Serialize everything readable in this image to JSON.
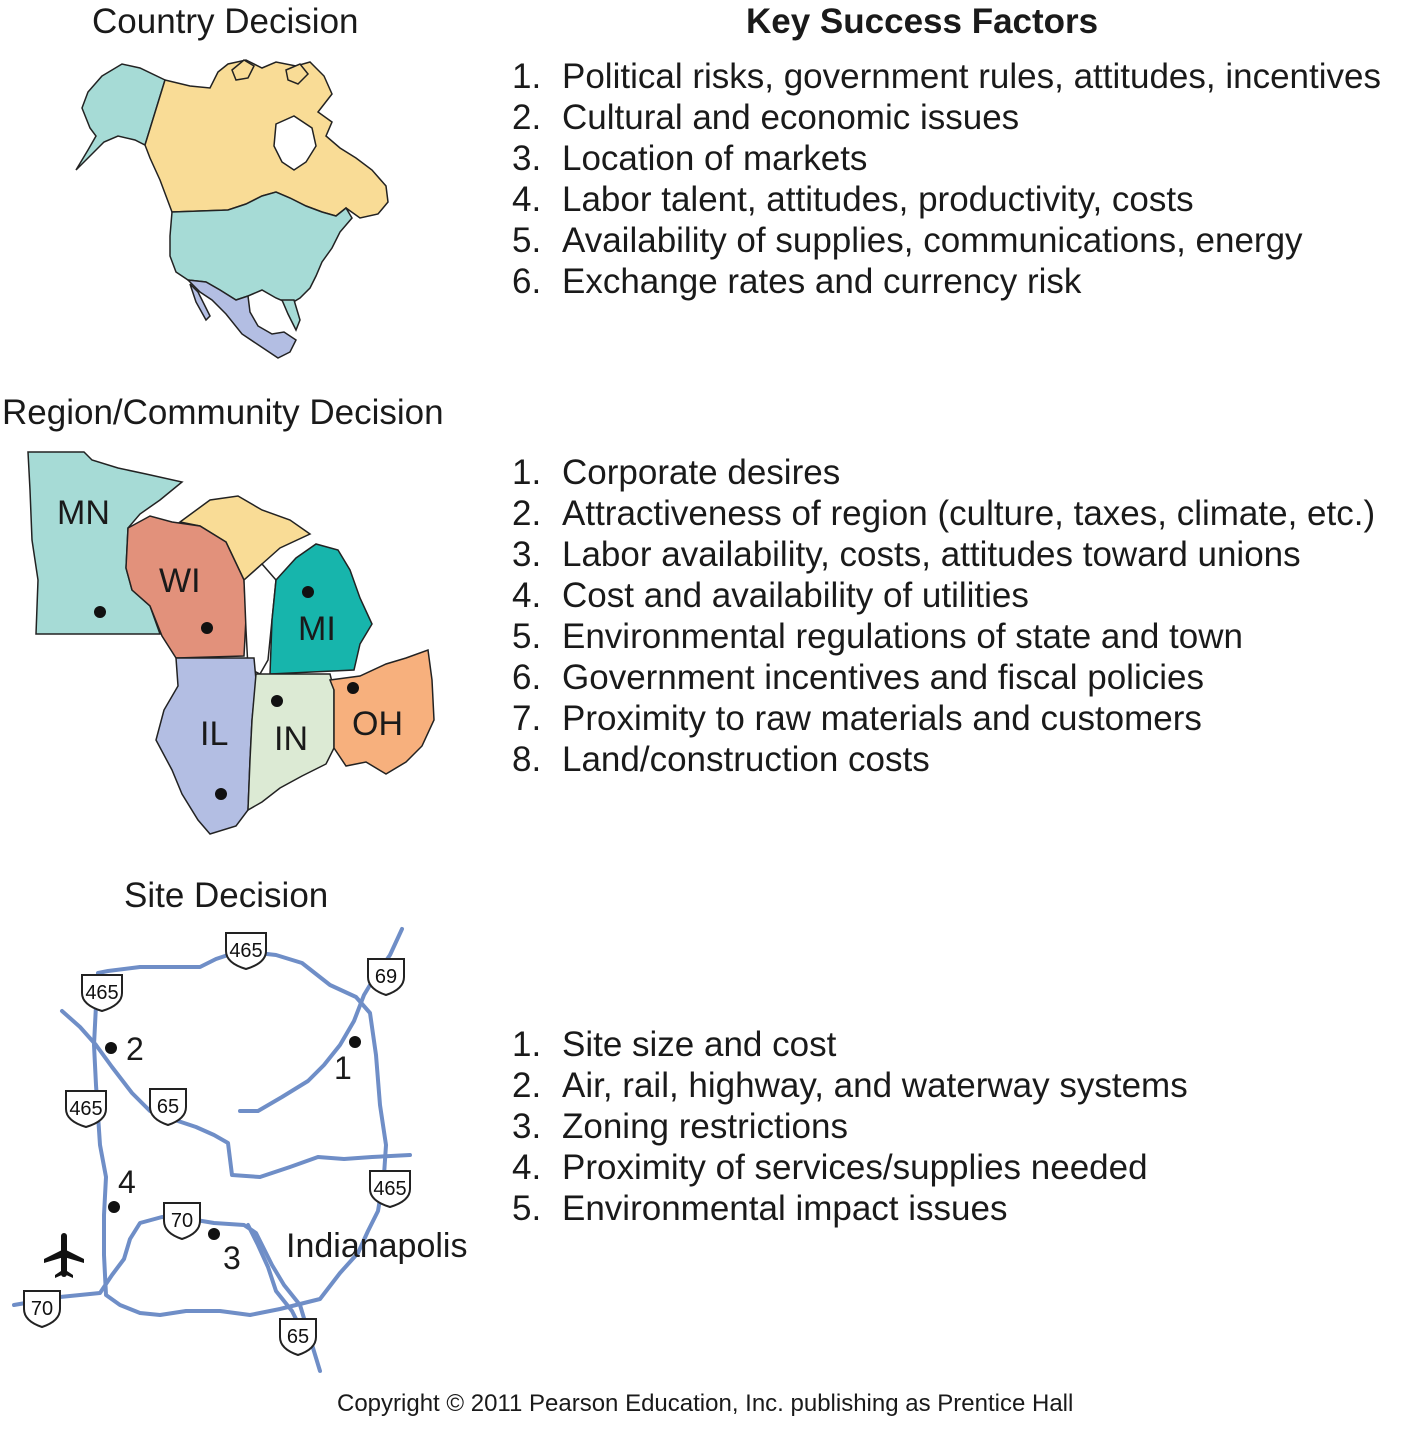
{
  "country": {
    "title": "Country Decision",
    "factors": [
      {
        "num": "1.",
        "text": "Political risks, government rules, attitudes, incentives"
      },
      {
        "num": "2.",
        "text": "Cultural and economic issues"
      },
      {
        "num": "3.",
        "text": "Location of markets"
      },
      {
        "num": "4.",
        "text": "Labor talent, attitudes, productivity, costs"
      },
      {
        "num": "5.",
        "text": "Availability of supplies, communications, energy"
      },
      {
        "num": "6.",
        "text": "Exchange rates and currency risk"
      }
    ]
  },
  "key_factors_heading": "Key Success Factors",
  "region": {
    "title": "Region/Community Decision",
    "states": {
      "mn": "MN",
      "wi": "WI",
      "mi": "MI",
      "il": "IL",
      "in": "IN",
      "oh": "OH"
    },
    "factors": [
      {
        "num": "1.",
        "text": "Corporate desires"
      },
      {
        "num": "2.",
        "text": "Attractiveness of region (culture, taxes, climate, etc.)"
      },
      {
        "num": "3.",
        "text": "Labor availability, costs, attitudes toward unions"
      },
      {
        "num": "4.",
        "text": "Cost and availability of utilities"
      },
      {
        "num": "5.",
        "text": "Environmental regulations of state and town"
      },
      {
        "num": "6.",
        "text": "Government incentives and fiscal policies"
      },
      {
        "num": "7.",
        "text": "Proximity to raw materials and customers"
      },
      {
        "num": "8.",
        "text": "Land/construction costs"
      }
    ]
  },
  "site": {
    "title": "Site Decision",
    "city": "Indianapolis",
    "sites": [
      "1",
      "2",
      "3",
      "4"
    ],
    "shields": {
      "i465": "465",
      "i69": "69",
      "i65": "65",
      "i70": "70"
    },
    "factors": [
      {
        "num": "1.",
        "text": "Site size and cost"
      },
      {
        "num": "2.",
        "text": "Air, rail, highway, and waterway systems"
      },
      {
        "num": "3.",
        "text": "Zoning restrictions"
      },
      {
        "num": "4.",
        "text": "Proximity of services/supplies needed"
      },
      {
        "num": "5.",
        "text": "Environmental impact issues"
      }
    ]
  },
  "colors": {
    "teal": "#a6dbd6",
    "yellow": "#f9dc96",
    "blue_gray": "#b3bee3",
    "mn": "#a6dbd6",
    "wi": "#e2917b",
    "mi_upper": "#f9dc96",
    "mi": "#17b5ac",
    "il": "#b3bee3",
    "in": "#dcead4",
    "oh": "#f7b07d",
    "road": "#6f8ec7"
  },
  "copyright": "Copyright © 2011 Pearson Education, Inc. publishing as Prentice Hall"
}
